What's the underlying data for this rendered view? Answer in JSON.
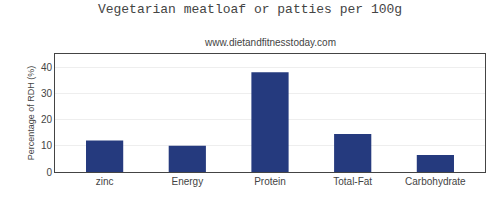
{
  "chart_data": {
    "type": "bar",
    "title": "Vegetarian meatloaf or patties per 100g",
    "subtitle": "www.dietandfitnesstoday.com",
    "categories": [
      "zinc",
      "Energy",
      "Protein",
      "Total-Fat",
      "Carbohydrate"
    ],
    "values": [
      12,
      10,
      38,
      14.5,
      6.5
    ],
    "color": "#253a7e",
    "ylabel": "Percentage of RDH (%)",
    "ylim": [
      0,
      45
    ],
    "yticks": [
      0,
      10,
      20,
      30,
      40
    ],
    "grid": true
  }
}
